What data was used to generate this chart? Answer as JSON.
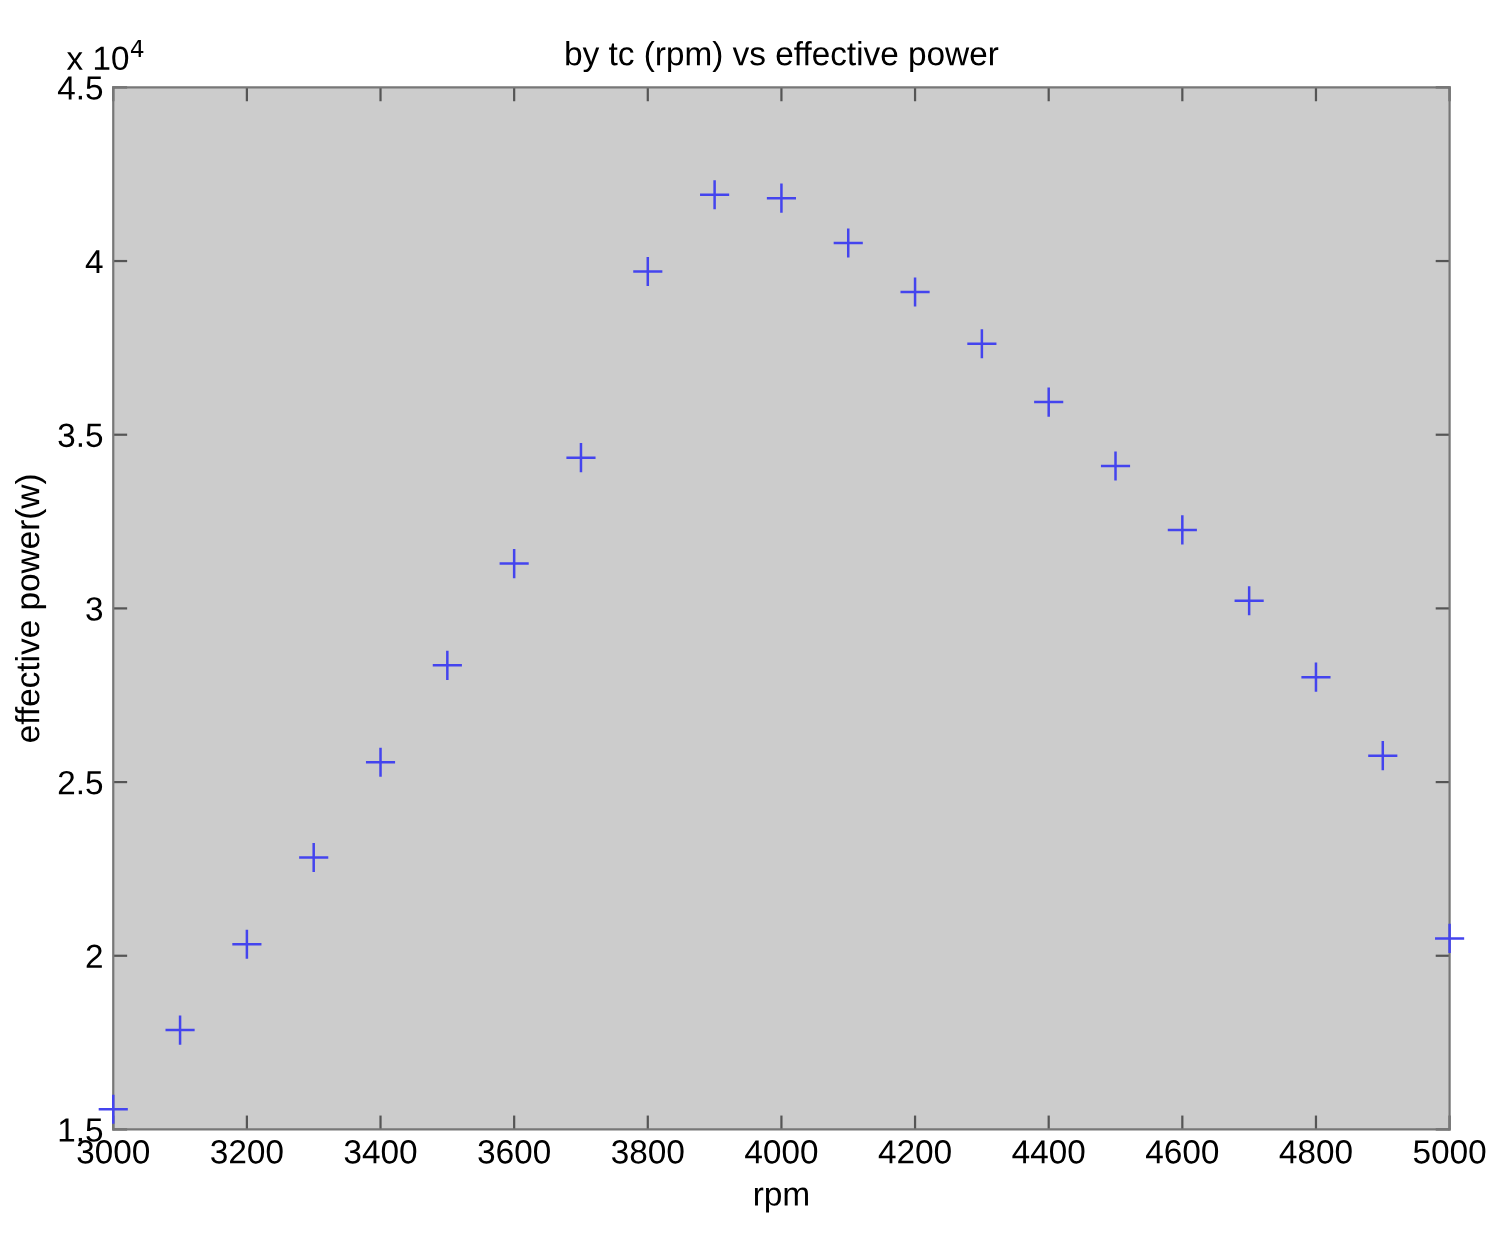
{
  "chart_data": {
    "type": "scatter",
    "title": "by tc (rpm) vs effective power",
    "xlabel": "rpm",
    "ylabel": "effective power(w)",
    "annotations": [
      "x 10$^{4}$"
    ],
    "x": [
      3000,
      3100,
      3200,
      3300,
      3400,
      3500,
      3600,
      3700,
      3800,
      3900,
      4000,
      4100,
      4200,
      4300,
      4400,
      4500,
      4600,
      4700,
      4800,
      4900,
      5000
    ],
    "series": [
      {
        "color": "#4444ee",
        "values": [
          1.558,
          1.786,
          2.033,
          2.283,
          2.557,
          2.836,
          3.129,
          3.434,
          3.97,
          4.191,
          4.181,
          4.052,
          3.911,
          3.762,
          3.594,
          3.41,
          3.226,
          3.022,
          2.802,
          2.576,
          2.05
        ]
      }
    ],
    "xlim": [
      3000,
      5000
    ],
    "xticks": [
      3000,
      3200,
      3400,
      3600,
      3800,
      4000,
      4200,
      4400,
      4600,
      4800,
      5000
    ],
    "ylim": [
      1.5,
      4.5
    ],
    "yticks": [
      1.5,
      2,
      2.5,
      3,
      3.5,
      4,
      4.5
    ],
    "marker": "cross",
    "grid": false,
    "legend": false
  }
}
